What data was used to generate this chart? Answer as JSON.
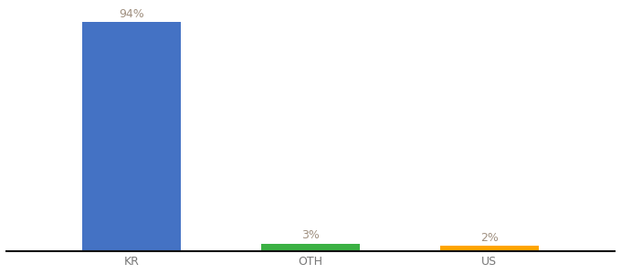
{
  "categories": [
    "KR",
    "OTH",
    "US"
  ],
  "values": [
    94,
    3,
    2
  ],
  "bar_colors": [
    "#4472C4",
    "#3BB143",
    "#FFA500"
  ],
  "labels": [
    "94%",
    "3%",
    "2%"
  ],
  "ylim": [
    0,
    100
  ],
  "background_color": "#ffffff",
  "label_color": "#a09080",
  "tick_fontsize": 9,
  "label_fontsize": 9,
  "bar_width": 0.55
}
